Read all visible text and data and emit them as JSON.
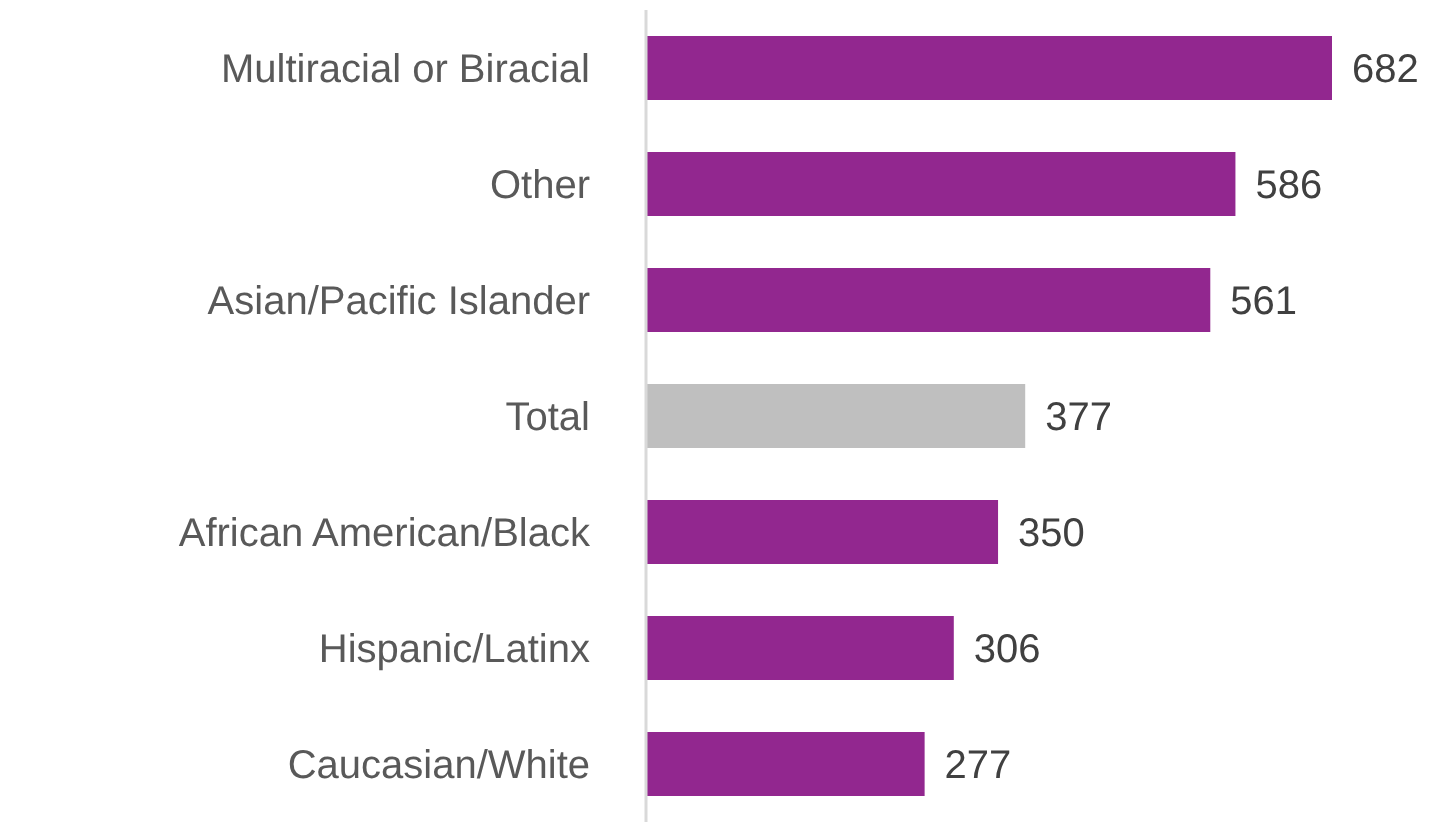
{
  "chart_data": {
    "type": "bar",
    "orientation": "horizontal",
    "categories": [
      "Multiracial or Biracial",
      "Other",
      "Asian/Pacific Islander",
      "Total",
      "African American/Black",
      "Hispanic/Latinx",
      "Caucasian/White"
    ],
    "values": [
      682,
      586,
      561,
      377,
      350,
      306,
      277
    ],
    "colors": [
      "#92278f",
      "#92278f",
      "#92278f",
      "#bfbfbf",
      "#92278f",
      "#92278f",
      "#92278f"
    ],
    "data_labels": true,
    "grid": false,
    "legend": false
  }
}
